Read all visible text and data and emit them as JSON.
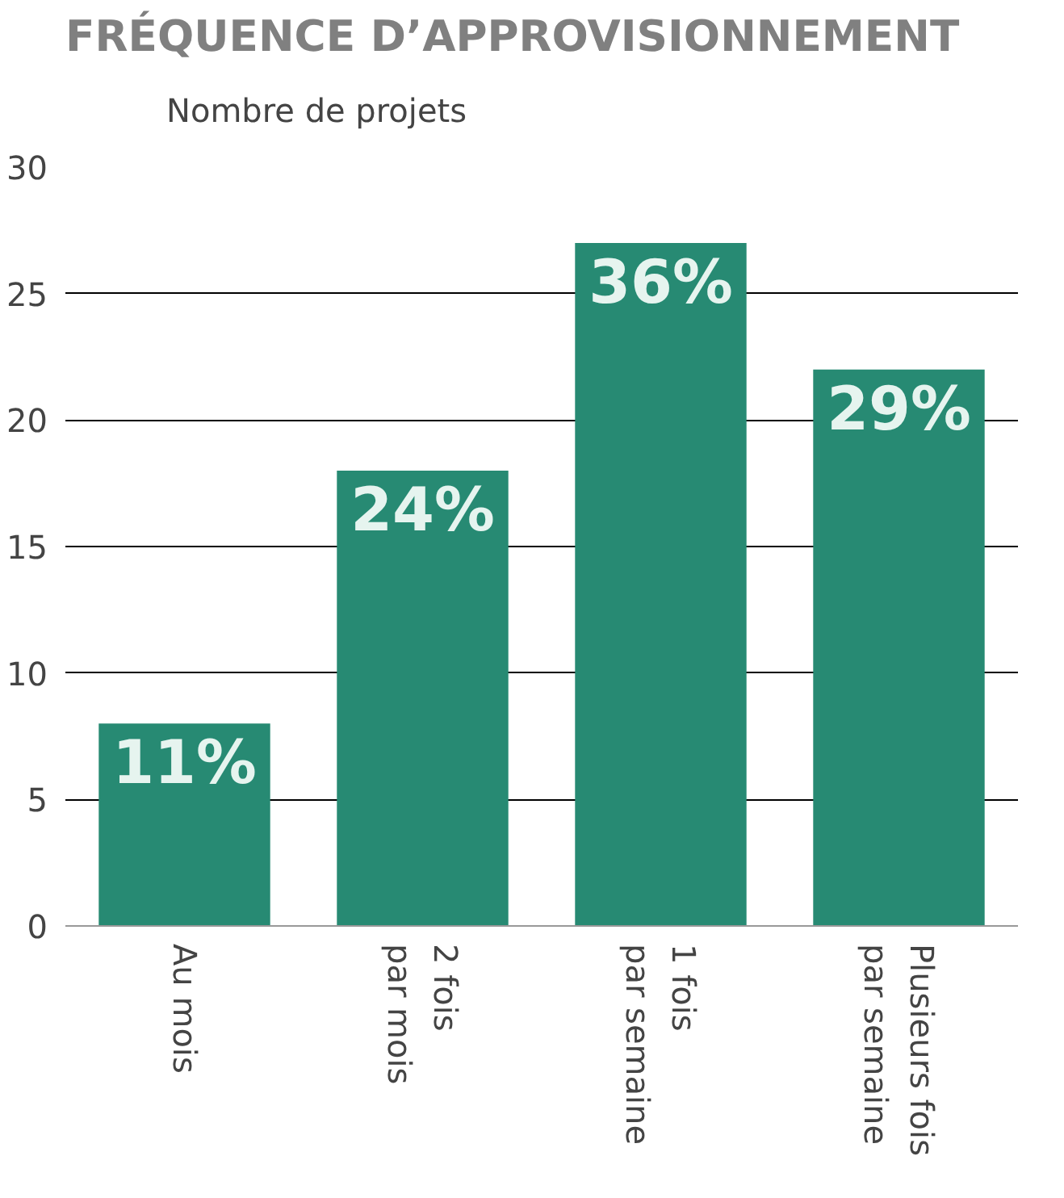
{
  "chart_data": {
    "type": "bar",
    "title": "FRÉQUENCE D’APPROVISIONNEMENT",
    "categories": [
      "Au mois",
      "2 fois\npar mois",
      "1 fois\npar semaine",
      "Plusieurs fois\npar semaine"
    ],
    "series": [
      {
        "name": "Nombre de projets",
        "color": "#278a73",
        "values": [
          8,
          18,
          27,
          22
        ]
      }
    ],
    "value_labels": [
      "11%",
      "24%",
      "36%",
      "29%"
    ],
    "ylim": [
      0,
      30
    ],
    "yticks": [
      0,
      5,
      10,
      15,
      20,
      25,
      30
    ],
    "grid": "y",
    "legend": "top left"
  }
}
